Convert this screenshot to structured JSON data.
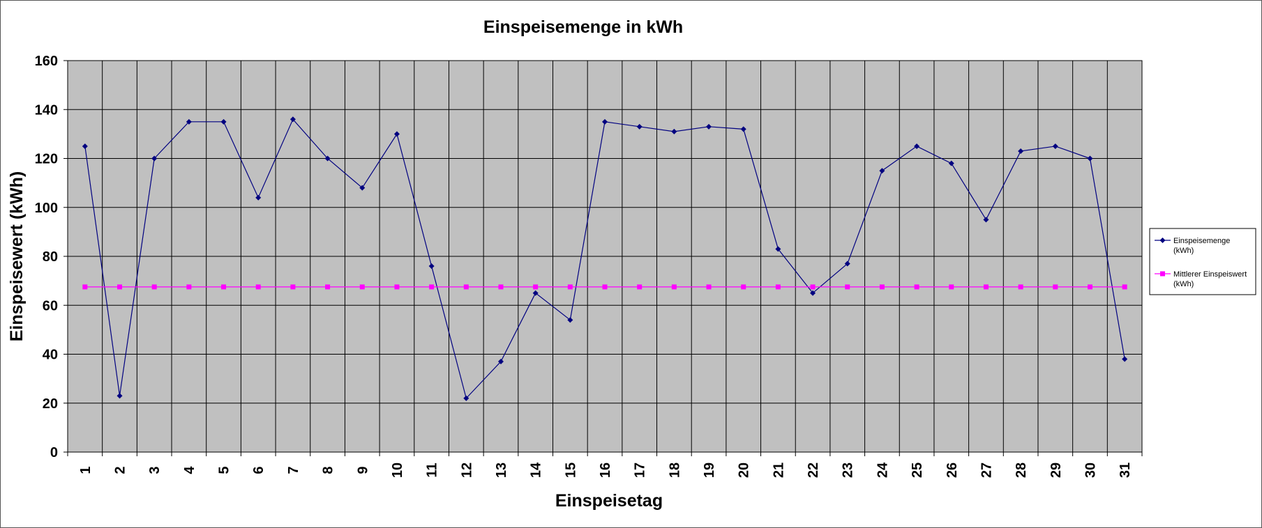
{
  "chart_data": {
    "type": "line",
    "title": "Einspeisemenge in kWh",
    "xlabel": "Einspeisetag",
    "ylabel": "Einspeisewert  (kWh)",
    "ylim": [
      0,
      160
    ],
    "yticks": [
      0,
      20,
      40,
      60,
      80,
      100,
      120,
      140,
      160
    ],
    "categories": [
      "1",
      "2",
      "3",
      "4",
      "5",
      "6",
      "7",
      "8",
      "9",
      "10",
      "11",
      "12",
      "13",
      "14",
      "15",
      "16",
      "17",
      "18",
      "19",
      "20",
      "21",
      "22",
      "23",
      "24",
      "25",
      "26",
      "27",
      "28",
      "29",
      "30",
      "31"
    ],
    "grid": true,
    "plot_background": "#c0c0c0",
    "legend_position": "right",
    "series": [
      {
        "name": "Einspeisemenge (kWh)",
        "legend_lines": [
          "Einspeisemenge",
          "(kWh)"
        ],
        "color": "#000080",
        "marker": "diamond",
        "values": [
          125,
          23,
          120,
          135,
          135,
          104,
          136,
          120,
          108,
          130,
          76,
          22,
          37,
          65,
          54,
          135,
          133,
          131,
          133,
          132,
          83,
          65,
          77,
          115,
          125,
          118,
          95,
          123,
          125,
          120,
          38
        ]
      },
      {
        "name": "Mittlerer Einspeiswert (kWh)",
        "legend_lines": [
          "Mittlerer Einspeiswert",
          "(kWh)"
        ],
        "color": "#ff00ff",
        "marker": "square",
        "values": [
          67.5,
          67.5,
          67.5,
          67.5,
          67.5,
          67.5,
          67.5,
          67.5,
          67.5,
          67.5,
          67.5,
          67.5,
          67.5,
          67.5,
          67.5,
          67.5,
          67.5,
          67.5,
          67.5,
          67.5,
          67.5,
          67.5,
          67.5,
          67.5,
          67.5,
          67.5,
          67.5,
          67.5,
          67.5,
          67.5,
          67.5
        ]
      }
    ]
  }
}
